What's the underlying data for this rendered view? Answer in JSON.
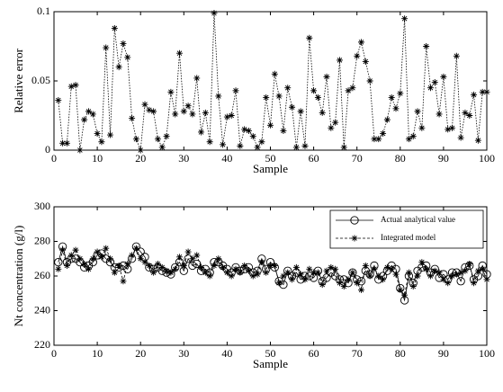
{
  "chart_data": [
    {
      "type": "line",
      "ylabel": "Relative error",
      "xlabel": "Sample",
      "x": [
        1,
        2,
        3,
        4,
        5,
        6,
        7,
        8,
        9,
        10,
        11,
        12,
        13,
        14,
        15,
        16,
        17,
        18,
        19,
        20,
        21,
        22,
        23,
        24,
        25,
        26,
        27,
        28,
        29,
        30,
        31,
        32,
        33,
        34,
        35,
        36,
        37,
        38,
        39,
        40,
        41,
        42,
        43,
        44,
        45,
        46,
        47,
        48,
        49,
        50,
        51,
        52,
        53,
        54,
        55,
        56,
        57,
        58,
        59,
        60,
        61,
        62,
        63,
        64,
        65,
        66,
        67,
        68,
        69,
        70,
        71,
        72,
        73,
        74,
        75,
        76,
        77,
        78,
        79,
        80,
        81,
        82,
        83,
        84,
        85,
        86,
        87,
        88,
        89,
        90,
        91,
        92,
        93,
        94,
        95,
        96,
        97,
        98,
        99,
        100
      ],
      "values": [
        0.036,
        0.005,
        0.005,
        0.046,
        0.047,
        0.0,
        0.022,
        0.028,
        0.026,
        0.012,
        0.006,
        0.074,
        0.011,
        0.088,
        0.06,
        0.077,
        0.067,
        0.023,
        0.008,
        0.0,
        0.033,
        0.029,
        0.028,
        0.008,
        0.002,
        0.01,
        0.042,
        0.026,
        0.07,
        0.028,
        0.032,
        0.026,
        0.052,
        0.013,
        0.027,
        0.006,
        0.099,
        0.039,
        0.004,
        0.024,
        0.025,
        0.043,
        0.003,
        0.015,
        0.014,
        0.01,
        0.002,
        0.006,
        0.038,
        0.018,
        0.055,
        0.039,
        0.014,
        0.045,
        0.031,
        0.002,
        0.028,
        0.003,
        0.081,
        0.043,
        0.038,
        0.027,
        0.053,
        0.016,
        0.02,
        0.065,
        0.002,
        0.043,
        0.045,
        0.068,
        0.078,
        0.064,
        0.05,
        0.008,
        0.008,
        0.012,
        0.022,
        0.038,
        0.03,
        0.041,
        0.095,
        0.008,
        0.01,
        0.028,
        0.016,
        0.075,
        0.045,
        0.049,
        0.026,
        0.053,
        0.015,
        0.016,
        0.068,
        0.009,
        0.027,
        0.025,
        0.04,
        0.007,
        0.042,
        0.042
      ],
      "color": "#000000",
      "marker": "star",
      "linestyle": "dotted",
      "xlim": [
        0,
        100
      ],
      "xticks": [
        0,
        10,
        20,
        30,
        40,
        50,
        60,
        70,
        80,
        90,
        100
      ],
      "ylim": [
        0,
        0.1
      ],
      "yticks": [
        0,
        0.05,
        0.1
      ]
    },
    {
      "type": "line",
      "ylabel": "Nt concentration (g/l)",
      "xlabel": "Sample",
      "x": [
        1,
        2,
        3,
        4,
        5,
        6,
        7,
        8,
        9,
        10,
        11,
        12,
        13,
        14,
        15,
        16,
        17,
        18,
        19,
        20,
        21,
        22,
        23,
        24,
        25,
        26,
        27,
        28,
        29,
        30,
        31,
        32,
        33,
        34,
        35,
        36,
        37,
        38,
        39,
        40,
        41,
        42,
        43,
        44,
        45,
        46,
        47,
        48,
        49,
        50,
        51,
        52,
        53,
        54,
        55,
        56,
        57,
        58,
        59,
        60,
        61,
        62,
        63,
        64,
        65,
        66,
        67,
        68,
        69,
        70,
        71,
        72,
        73,
        74,
        75,
        76,
        77,
        78,
        79,
        80,
        81,
        82,
        83,
        84,
        85,
        86,
        87,
        88,
        89,
        90,
        91,
        92,
        93,
        94,
        95,
        96,
        97,
        98,
        99,
        100
      ],
      "series": [
        {
          "name": "Actual analytical value",
          "color": "#000000",
          "marker": "circle",
          "linestyle": "solid",
          "values": [
            268,
            277,
            268,
            270,
            270,
            268,
            265,
            266,
            268,
            272,
            273,
            270,
            268,
            265,
            265,
            266,
            264,
            270,
            277,
            274,
            271,
            265,
            264,
            265,
            263,
            262,
            261,
            265,
            268,
            263,
            270,
            266,
            267,
            263,
            264,
            262,
            268,
            268,
            266,
            264,
            262,
            265,
            263,
            264,
            265,
            262,
            263,
            270,
            264,
            268,
            265,
            257,
            255,
            263,
            260,
            262,
            258,
            260,
            260,
            259,
            263,
            257,
            259,
            262,
            260,
            258,
            258,
            256,
            262,
            258,
            257,
            263,
            261,
            266,
            258,
            260,
            263,
            266,
            264,
            253,
            246,
            260,
            256,
            263,
            265,
            266,
            262,
            264,
            259,
            261,
            258,
            262,
            262,
            257,
            265,
            266,
            258,
            260,
            266,
            261
          ]
        },
        {
          "name": "Integrated model",
          "color": "#000000",
          "marker": "star",
          "linestyle": "dashed",
          "values": [
            264,
            275,
            266,
            272,
            275,
            270,
            267,
            264,
            270,
            274,
            271,
            276,
            270,
            262,
            266,
            257,
            267,
            272,
            276,
            270,
            268,
            266,
            262,
            267,
            265,
            263,
            262,
            264,
            271,
            266,
            274,
            270,
            272,
            265,
            262,
            260,
            266,
            270,
            265,
            262,
            260,
            264,
            262,
            266,
            263,
            260,
            261,
            268,
            262,
            266,
            266,
            256,
            260,
            262,
            258,
            265,
            261,
            258,
            264,
            262,
            262,
            255,
            263,
            265,
            264,
            256,
            254,
            258,
            262,
            256,
            252,
            266,
            260,
            264,
            260,
            258,
            265,
            264,
            261,
            252,
            249,
            262,
            254,
            260,
            268,
            264,
            260,
            263,
            262,
            258,
            256,
            260,
            261,
            262,
            263,
            267,
            256,
            263,
            264,
            258
          ]
        }
      ],
      "xlim": [
        0,
        100
      ],
      "xticks": [
        0,
        10,
        20,
        30,
        40,
        50,
        60,
        70,
        80,
        90,
        100
      ],
      "ylim": [
        220,
        300
      ],
      "yticks": [
        220,
        240,
        260,
        280,
        300
      ],
      "legend": "upper right"
    }
  ]
}
